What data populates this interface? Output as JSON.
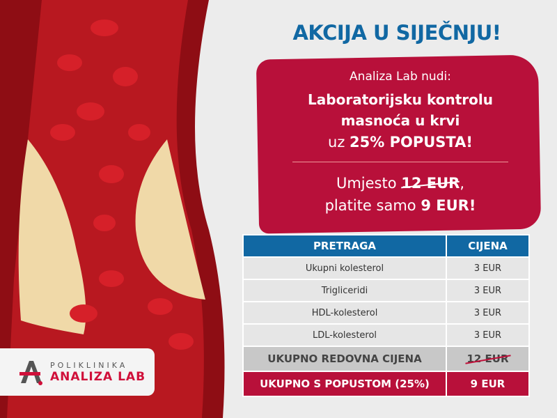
{
  "title": "AKCIJA U SIJEČNJU!",
  "banner": {
    "intro": "Analiza Lab nudi:",
    "headline_1": "Laboratorijsku kontrolu",
    "headline_2": "masnoća u krvi",
    "discount_prefix": "uz ",
    "discount": "25% POPUSTA!",
    "instead_prefix": "Umjesto ",
    "old_price": "12 EUR",
    "instead_suffix": ",",
    "pay_prefix": "platite samo ",
    "new_price": "9 EUR!"
  },
  "table": {
    "headers": [
      "PRETRAGA",
      "CIJENA"
    ],
    "rows": [
      {
        "test": "Ukupni kolesterol",
        "price": "3 EUR"
      },
      {
        "test": "Trigliceridi",
        "price": "3 EUR"
      },
      {
        "test": "HDL-kolesterol",
        "price": "3 EUR"
      },
      {
        "test": "LDL-kolesterol",
        "price": "3 EUR"
      }
    ],
    "regular_label": "UKUPNO REDOVNA CIJENA",
    "regular_price": "12 EUR",
    "discount_label": "UKUPNO S POPUSTOM (25%)",
    "discount_price": "9 EUR"
  },
  "logo": {
    "line1": "POLIKLINIKA",
    "line2": "ANALIZA LAB"
  },
  "colors": {
    "blue": "#1168a3",
    "red": "#b8103a",
    "background": "#ececec"
  }
}
